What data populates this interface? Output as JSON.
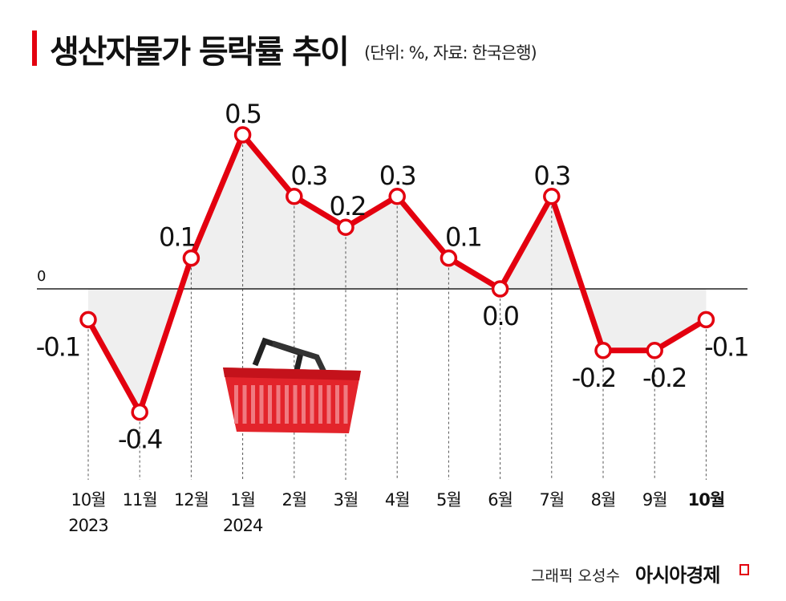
{
  "title": "생산자물가 등락률 추이",
  "subtitle": "(단위: %, 자료: 한국은행)",
  "credit": "그래픽 오성수",
  "brand": "아시아경제",
  "colors": {
    "line": "#e3000f",
    "area": "#efefef",
    "accent": "#e3000f"
  },
  "chart_data": {
    "type": "line",
    "title": "생산자물가 등락률 추이",
    "categories": [
      "10월",
      "11월",
      "12월",
      "1월",
      "2월",
      "3월",
      "4월",
      "5월",
      "6월",
      "7월",
      "8월",
      "9월",
      "10월"
    ],
    "year_labels": [
      "2023",
      "",
      "",
      "2024",
      "",
      "",
      "",
      "",
      "",
      "",
      "",
      "",
      ""
    ],
    "values": [
      -0.1,
      -0.4,
      0.1,
      0.5,
      0.3,
      0.2,
      0.3,
      0.1,
      0.0,
      0.3,
      -0.2,
      -0.2,
      -0.1
    ],
    "value_labels": [
      "-0.1",
      "-0.4",
      "0.1",
      "0.5",
      "0.3",
      "0.2",
      "0.3",
      "0.1",
      "0.0",
      "0.3",
      "-0.2",
      "-0.2",
      "-0.1"
    ],
    "zero_label": "0",
    "ylim": [
      -0.6,
      0.6
    ],
    "grid": false,
    "legend": "none"
  }
}
